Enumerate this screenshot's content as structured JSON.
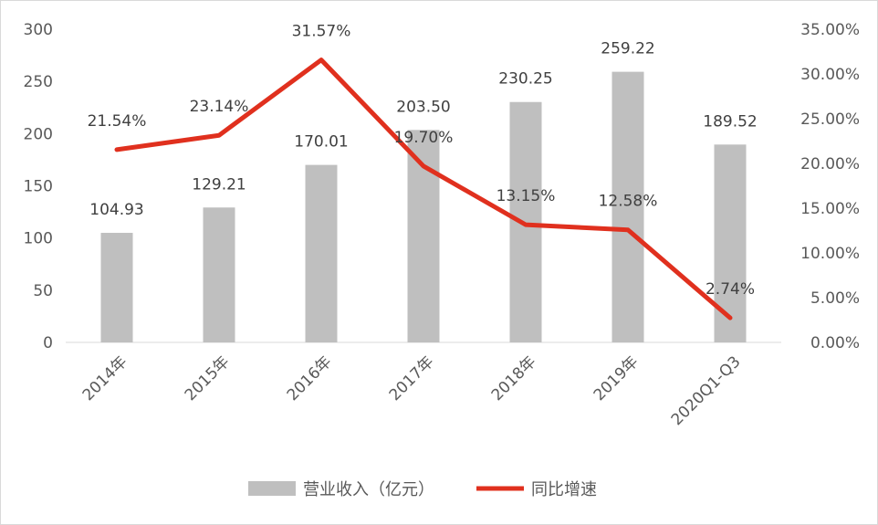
{
  "chart_data": {
    "type": "bar",
    "categories": [
      "2014年",
      "2015年",
      "2016年",
      "2017年",
      "2018年",
      "2019年",
      "2020Q1-Q3"
    ],
    "series": [
      {
        "name": "营业收入（亿元）",
        "type": "bar",
        "axis": "left",
        "values": [
          104.93,
          129.21,
          170.01,
          203.5,
          230.25,
          259.22,
          189.52
        ],
        "labels": [
          "104.93",
          "129.21",
          "170.01",
          "203.50",
          "230.25",
          "259.22",
          "189.52"
        ],
        "color": "#bfbfbf"
      },
      {
        "name": "同比增速",
        "type": "line",
        "axis": "right",
        "values": [
          21.54,
          23.14,
          31.57,
          19.7,
          13.15,
          12.58,
          2.74
        ],
        "labels": [
          "21.54%",
          "23.14%",
          "31.57%",
          "19.70%",
          "13.15%",
          "12.58%",
          "2.74%"
        ],
        "color": "#e0301e"
      }
    ],
    "y_left": {
      "range": [
        0,
        300
      ],
      "ticks": [
        0,
        50,
        100,
        150,
        200,
        250,
        300
      ],
      "tick_labels": [
        "0",
        "50",
        "100",
        "150",
        "200",
        "250",
        "300"
      ]
    },
    "y_right": {
      "range": [
        0,
        35
      ],
      "ticks": [
        0,
        5,
        10,
        15,
        20,
        25,
        30,
        35
      ],
      "tick_labels": [
        "0.00%",
        "5.00%",
        "10.00%",
        "15.00%",
        "20.00%",
        "25.00%",
        "30.00%",
        "35.00%"
      ]
    },
    "grid": false,
    "legend_position": "bottom",
    "title": "",
    "xlabel": "",
    "ylabel": ""
  },
  "colors": {
    "bar": "#bfbfbf",
    "line": "#e0301e",
    "axis": "#d9d9d9",
    "text": "#595959"
  }
}
